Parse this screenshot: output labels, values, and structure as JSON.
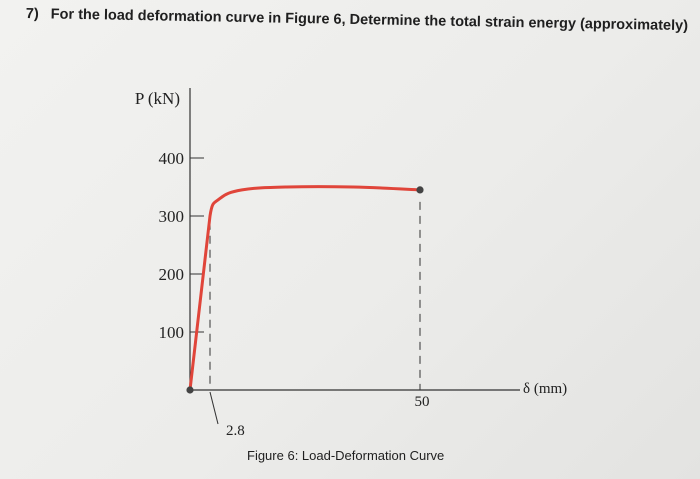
{
  "question": {
    "number": "7)",
    "text": "For the load deformation curve in Figure 6, Determine the total strain energy (approximately)"
  },
  "caption": "Figure 6: Load-Deformation Curve",
  "chart_data": {
    "type": "line",
    "ylabel": "P (kN)",
    "xlabel": "δ (mm)",
    "yticks": [
      100,
      200,
      300,
      400
    ],
    "xticks": [
      2.8,
      50
    ],
    "xtick_labels": [
      "2.8",
      "50"
    ],
    "ylim": [
      0,
      400
    ],
    "xlim": [
      0,
      70
    ],
    "grid": false,
    "series": [
      {
        "color": "#e0453a",
        "points": [
          [
            0,
            0
          ],
          [
            2.8,
            300
          ],
          [
            5,
            330
          ],
          [
            10,
            345
          ],
          [
            20,
            350
          ],
          [
            35,
            350
          ],
          [
            50,
            345
          ]
        ]
      }
    ],
    "endpoints": [
      [
        0,
        0
      ],
      [
        50,
        345
      ]
    ]
  }
}
